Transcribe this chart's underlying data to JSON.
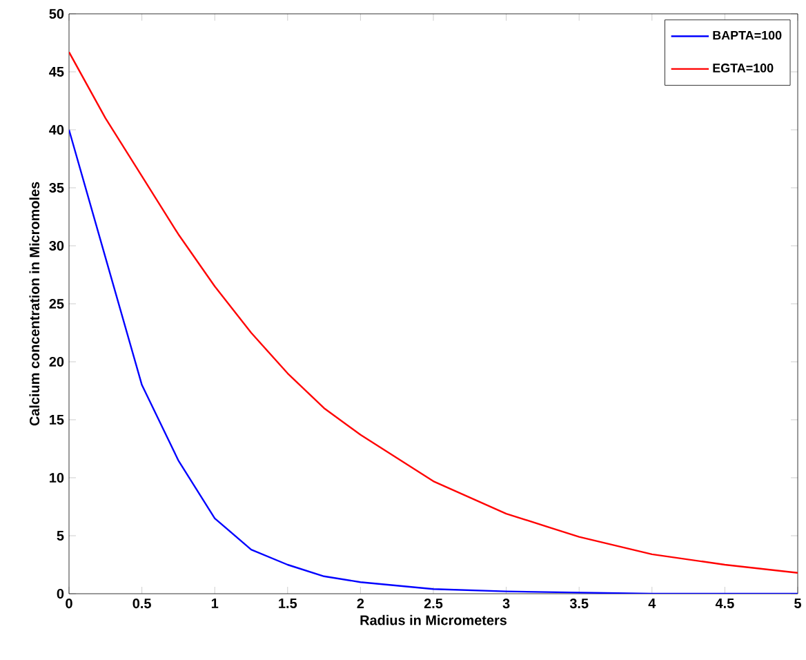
{
  "chart_data": {
    "type": "line",
    "xlabel": "Radius in Micrometers",
    "ylabel": "Calcium concentration in Micromoles",
    "x": [
      0,
      0.25,
      0.5,
      0.75,
      1,
      1.25,
      1.5,
      1.75,
      2,
      2.5,
      3,
      3.5,
      4,
      4.5,
      5
    ],
    "series": [
      {
        "name": "BAPTA=100",
        "color": "#0000ff",
        "values": [
          40,
          29,
          18,
          11.5,
          6.5,
          3.8,
          2.5,
          1.5,
          1.0,
          0.4,
          0.2,
          0.1,
          0,
          0,
          0
        ]
      },
      {
        "name": "EGTA=100",
        "color": "#ff0000",
        "values": [
          46.7,
          41,
          36,
          31,
          26.5,
          22.5,
          19,
          16,
          13.7,
          9.7,
          6.9,
          4.9,
          3.4,
          2.5,
          1.8
        ]
      }
    ],
    "xlim": [
      0,
      5
    ],
    "ylim": [
      0,
      50
    ],
    "xticks": [
      0,
      0.5,
      1,
      1.5,
      2,
      2.5,
      3,
      3.5,
      4,
      4.5,
      5
    ],
    "yticks": [
      0,
      5,
      10,
      15,
      20,
      25,
      30,
      35,
      40,
      45,
      50
    ],
    "grid": false,
    "legend": "top right",
    "marker": "none",
    "line_style": "solid"
  }
}
